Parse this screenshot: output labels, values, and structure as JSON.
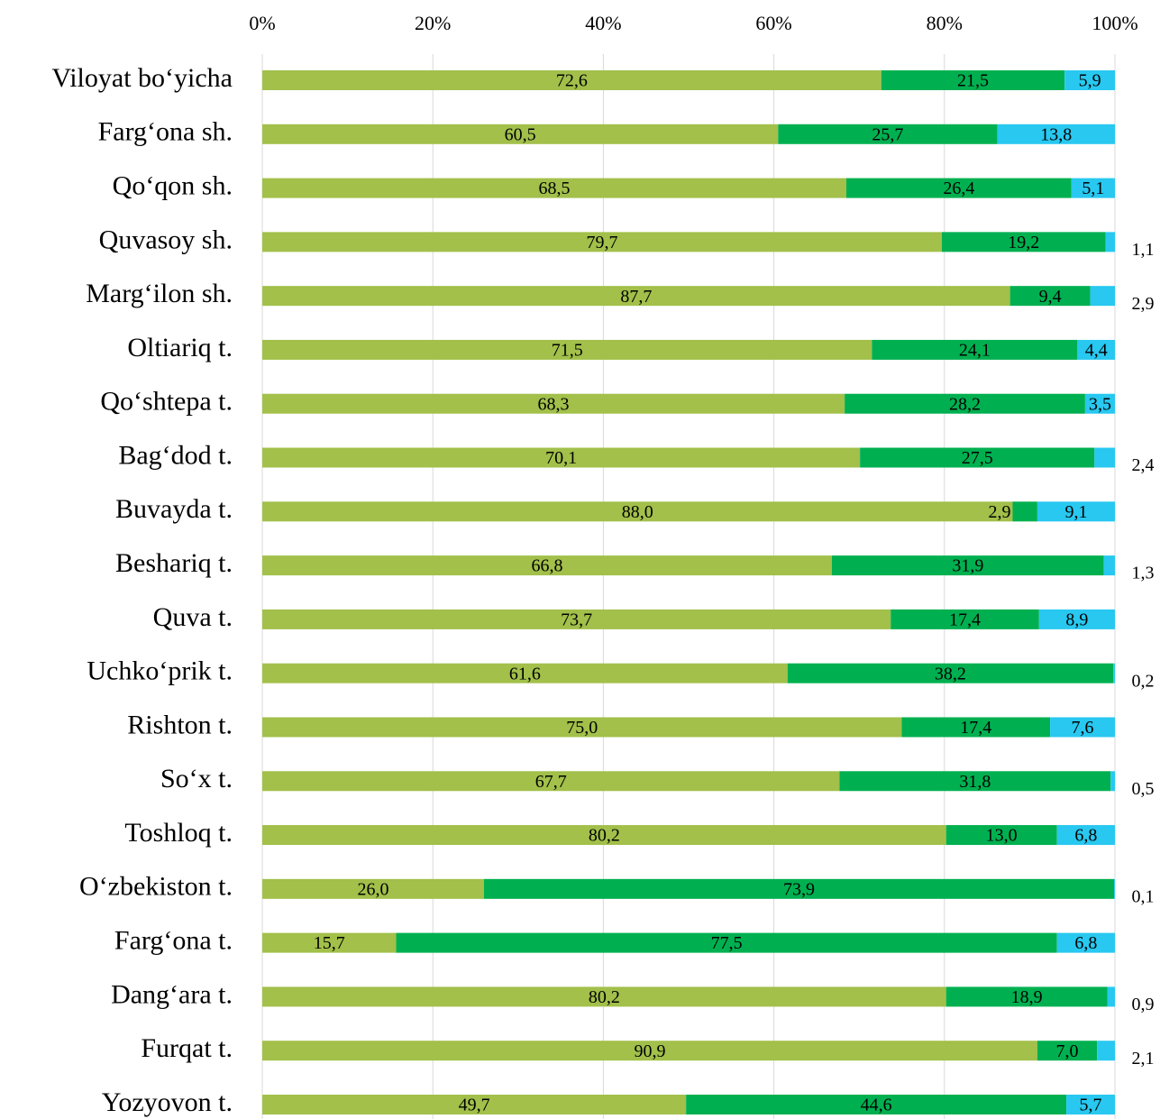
{
  "chart_data": {
    "type": "stacked_barh",
    "categories": [
      "Viloyat bo‘yicha",
      "Farg‘ona sh.",
      "Qo‘qon sh.",
      "Quvasoy sh.",
      "Marg‘ilon sh.",
      "Oltiariq t.",
      "Qo‘shtepa t.",
      "Bag‘dod t.",
      "Buvayda t.",
      "Beshariq t.",
      "Quva t.",
      "Uchko‘prik t.",
      "Rishton t.",
      "So‘x t.",
      "Toshloq t.",
      "O‘zbekiston t.",
      "Farg‘ona t.",
      "Dang‘ara t.",
      "Furqat t.",
      "Yozyovon t."
    ],
    "series": [
      {
        "color": "#a2c04a",
        "values": [
          72.6,
          60.5,
          68.5,
          79.7,
          87.7,
          71.5,
          68.3,
          70.1,
          88.0,
          66.8,
          73.7,
          61.6,
          75.0,
          67.7,
          80.2,
          26.0,
          15.7,
          80.2,
          90.9,
          49.7
        ],
        "value_labels": [
          "72,6",
          "60,5",
          "68,5",
          "79,7",
          "87,7",
          "71,5",
          "68,3",
          "70,1",
          "88,0",
          "66,8",
          "73,7",
          "61,6",
          "75,0",
          "67,7",
          "80,2",
          "26,0",
          "15,7",
          "80,2",
          "90,9",
          "49,7"
        ]
      },
      {
        "color": "#00b050",
        "values": [
          21.5,
          25.7,
          26.4,
          19.2,
          9.4,
          24.1,
          28.2,
          27.5,
          2.9,
          31.9,
          17.4,
          38.2,
          17.4,
          31.8,
          13.0,
          73.9,
          77.5,
          18.9,
          7.0,
          44.6
        ],
        "value_labels": [
          "21,5",
          "25,7",
          "26,4",
          "19,2",
          "9,4",
          "24,1",
          "28,2",
          "27,5",
          "2,9",
          "31,9",
          "17,4",
          "38,2",
          "17,4",
          "31,8",
          "13,0",
          "73,9",
          "77,5",
          "18,9",
          "7,0",
          "44,6"
        ]
      },
      {
        "color": "#28c8f0",
        "values": [
          5.9,
          13.8,
          5.1,
          1.1,
          2.9,
          4.4,
          3.5,
          2.4,
          9.1,
          1.3,
          8.9,
          0.2,
          7.6,
          0.5,
          6.8,
          0.1,
          6.8,
          0.9,
          2.1,
          5.7
        ],
        "value_labels": [
          "5,9",
          "13,8",
          "5,1",
          "1,1",
          "2,9",
          "4,4",
          "3,5",
          "2,4",
          "9,1",
          "1,3",
          "8,9",
          "0,2",
          "7,6",
          "0,5",
          "6,8",
          "0,1",
          "6,8",
          "0,9",
          "2,1",
          "5,7"
        ]
      }
    ],
    "xlim": [
      0,
      100
    ],
    "xticks": [
      {
        "value": 0,
        "label": "0%"
      },
      {
        "value": 20,
        "label": "20%"
      },
      {
        "value": 40,
        "label": "40%"
      },
      {
        "value": 60,
        "label": "60%"
      },
      {
        "value": 80,
        "label": "80%"
      },
      {
        "value": 100,
        "label": "100%"
      }
    ],
    "grid": true
  }
}
